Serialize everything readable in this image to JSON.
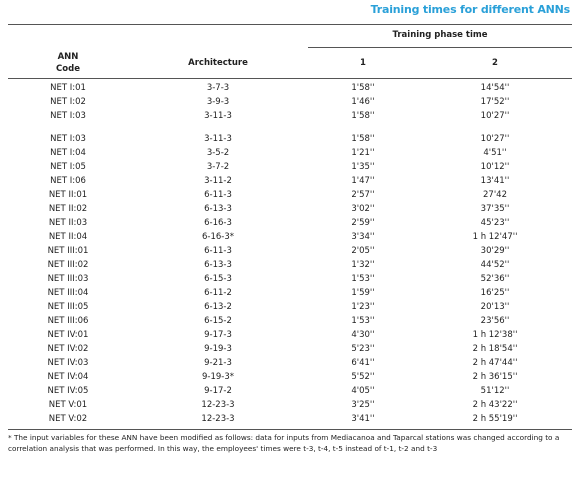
{
  "title": "Training times for different ANNs",
  "table": {
    "group_header": "Training phase time",
    "columns": [
      "ANN Code",
      "Architecture",
      "1",
      "2"
    ],
    "row_groups": [
      [
        [
          "NET I:01",
          "3-7-3",
          "1'58''",
          "14'54''"
        ],
        [
          "NET I:02",
          "3-9-3",
          "1'46''",
          "17'52''"
        ],
        [
          "NET I:03",
          "3-11-3",
          "1'58''",
          "10'27''"
        ]
      ],
      [
        [
          "NET I:03",
          "3-11-3",
          "1'58''",
          "10'27''"
        ],
        [
          "NET I:04",
          "3-5-2",
          "1'21''",
          "4'51''"
        ],
        [
          "NET I:05",
          "3-7-2",
          "1'35''",
          "10'12''"
        ],
        [
          "NET I:06",
          "3-11-2",
          "1'47''",
          "13'41''"
        ],
        [
          "NET II:01",
          "6-11-3",
          "2'57''",
          "27'42"
        ],
        [
          "NET II:02",
          "6-13-3",
          "3'02''",
          "37'35''"
        ],
        [
          "NET II:03",
          "6-16-3",
          "2'59''",
          "45'23''"
        ],
        [
          "NET II:04",
          "6-16-3*",
          "3'34''",
          "1 h 12'47''"
        ],
        [
          "NET III:01",
          "6-11-3",
          "2'05''",
          "30'29''"
        ],
        [
          "NET III:02",
          "6-13-3",
          "1'32''",
          "44'52''"
        ],
        [
          "NET III:03",
          "6-15-3",
          "1'53''",
          "52'36''"
        ],
        [
          "NET III:04",
          "6-11-2",
          "1'59''",
          "16'25''"
        ],
        [
          "NET III:05",
          "6-13-2",
          "1'23''",
          "20'13''"
        ],
        [
          "NET III:06",
          "6-15-2",
          "1'53''",
          "23'56''"
        ],
        [
          "NET IV:01",
          "9-17-3",
          "4'30''",
          "1 h 12'38''"
        ],
        [
          "NET IV:02",
          "9-19-3",
          "5'23''",
          "2 h 18'54''"
        ],
        [
          "NET IV:03",
          "9-21-3",
          "6'41''",
          "2 h 47'44''"
        ],
        [
          "NET IV:04",
          "9-19-3*",
          "5'52''",
          "2 h 36'15''"
        ],
        [
          "NET IV:05",
          "9-17-2",
          "4'05''",
          "51'12''"
        ],
        [
          "NET V:01",
          "12-23-3",
          "3'25''",
          "2 h 43'22''"
        ],
        [
          "NET V:02",
          "12-23-3",
          "3'41''",
          "2 h 55'19''"
        ]
      ]
    ]
  },
  "footnote": "* The input variables for these ANN have been modified as follows: data for inputs from Mediacanoa and Taparcal stations was changed according to a correlation analysis that was performed. In this way, the employees' times were t-3, t-4, t-5 instead of t-1, t-2 and t-3"
}
